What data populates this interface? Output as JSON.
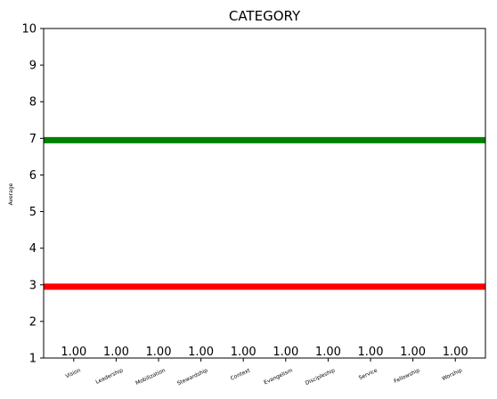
{
  "chart_data": {
    "type": "bar",
    "title": "CATEGORY",
    "xlabel": "",
    "ylabel": "Average",
    "categories": [
      "Vision",
      "Leadership",
      "Mobilization",
      "Stewardship",
      "Context",
      "Evangelism",
      "Discipleship",
      "Service",
      "Fellowship",
      "Worship"
    ],
    "values": [
      1.0,
      1.0,
      1.0,
      1.0,
      1.0,
      1.0,
      1.0,
      1.0,
      1.0,
      1.0
    ],
    "data_labels": [
      "1.00",
      "1.00",
      "1.00",
      "1.00",
      "1.00",
      "1.00",
      "1.00",
      "1.00",
      "1.00",
      "1.00"
    ],
    "ylim": [
      1,
      10
    ],
    "yticks": [
      1,
      2,
      3,
      4,
      5,
      6,
      7,
      8,
      9,
      10
    ],
    "grid": false,
    "reference_lines": [
      {
        "y": 6.95,
        "color": "#008000"
      },
      {
        "y": 2.95,
        "color": "#ff0000"
      }
    ]
  }
}
